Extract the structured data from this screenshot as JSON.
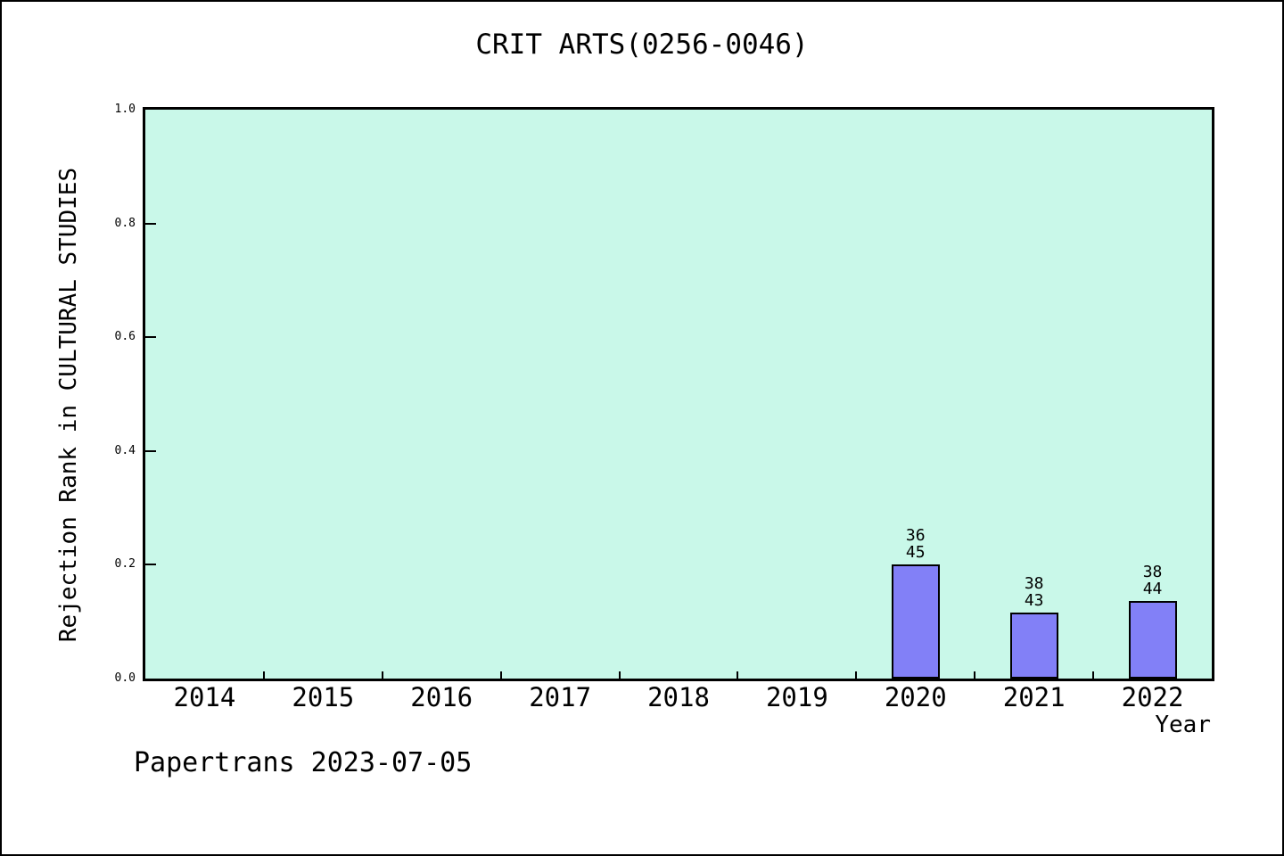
{
  "chart_data": {
    "type": "bar",
    "title": "CRIT ARTS(0256-0046)",
    "xlabel": "Year",
    "ylabel": "Rejection Rank in CULTURAL STUDIES",
    "categories": [
      "2014",
      "2015",
      "2016",
      "2017",
      "2018",
      "2019",
      "2020",
      "2021",
      "2022"
    ],
    "series": [
      {
        "name": "Rejection Rank",
        "values": [
          null,
          null,
          null,
          null,
          null,
          null,
          0.2,
          0.116,
          0.136
        ],
        "annotations": [
          null,
          null,
          null,
          null,
          null,
          null,
          [
            "36",
            "45"
          ],
          [
            "38",
            "43"
          ],
          [
            "38",
            "44"
          ]
        ]
      }
    ],
    "ylim": [
      0.0,
      1.0
    ],
    "yticks": [
      0.0,
      0.2,
      0.4,
      0.6,
      0.8,
      1.0
    ],
    "ytick_labels": [
      "0.0",
      "0.2",
      "0.4",
      "0.6",
      "0.8",
      "1.0"
    ],
    "grid": false,
    "legend": null,
    "colors": {
      "plot_background": "#c9f8e9",
      "bar_fill": "#8280f7",
      "bar_border": "#000000",
      "axis": "#000000",
      "text": "#000000",
      "page_background": "#ffffff"
    }
  },
  "footer": {
    "text": "Papertrans 2023-07-05"
  }
}
